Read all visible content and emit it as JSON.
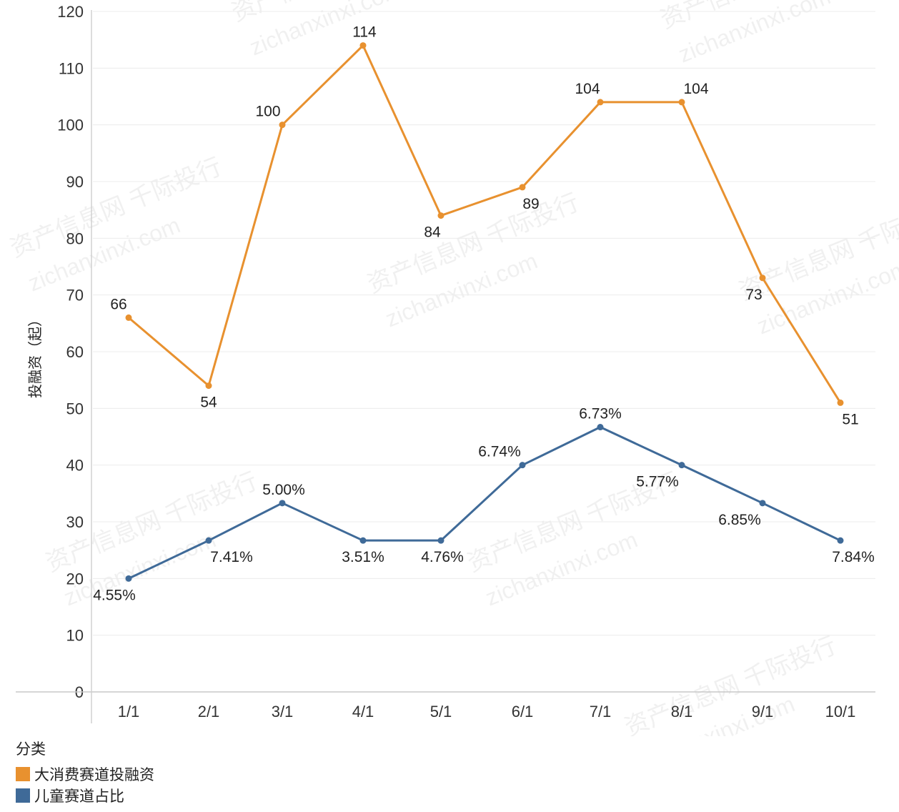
{
  "chart_data": {
    "type": "line",
    "ylabel": "投融资（起）",
    "ylim": [
      0,
      120
    ],
    "yticks": [
      0,
      10,
      20,
      30,
      40,
      50,
      60,
      70,
      80,
      90,
      100,
      110,
      120
    ],
    "categories": [
      "1/1",
      "2/1",
      "3/1",
      "4/1",
      "5/1",
      "6/1",
      "7/1",
      "8/1",
      "9/1",
      "10/1"
    ],
    "grid": true,
    "legend_position": "bottom-left",
    "legend_title": "分类",
    "series": [
      {
        "name": "大消费赛道投融资",
        "color": "#E8912F",
        "values": [
          66,
          54,
          100,
          114,
          84,
          89,
          104,
          104,
          73,
          51
        ],
        "labels": [
          "66",
          "54",
          "100",
          "114",
          "84",
          "89",
          "104",
          "104",
          "73",
          "51"
        ]
      },
      {
        "name": "儿童赛道占比",
        "color": "#3F6A98",
        "values": [
          20,
          26.7,
          33.3,
          26.7,
          26.7,
          40,
          46.7,
          40,
          33.3,
          26.7
        ],
        "labels": [
          "4.55%",
          "7.41%",
          "5.00%",
          "3.51%",
          "4.76%",
          "6.74%",
          "6.73%",
          "5.77%",
          "6.85%",
          "7.84%"
        ]
      }
    ],
    "watermark": [
      "资产信息网 千际投行",
      "zichanxinxi.com"
    ]
  }
}
